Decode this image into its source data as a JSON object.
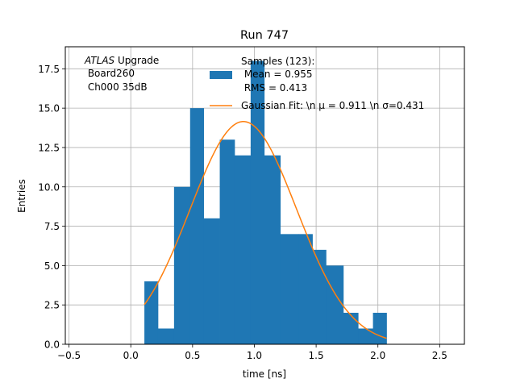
{
  "chart_data": {
    "type": "bar",
    "title": "Run 747",
    "xlabel": "time [ns]",
    "ylabel": "Entries",
    "xlim": [
      -0.53,
      2.7
    ],
    "ylim": [
      0,
      18.9
    ],
    "grid": true,
    "xticks": [
      -0.5,
      0.0,
      0.5,
      1.0,
      1.5,
      2.0,
      2.5
    ],
    "xtick_labels": [
      "−0.5",
      "0.0",
      "0.5",
      "1.0",
      "1.5",
      "2.0",
      "2.5"
    ],
    "yticks": [
      0.0,
      2.5,
      5.0,
      7.5,
      10.0,
      12.5,
      15.0,
      17.5
    ],
    "ytick_labels": [
      "0.0",
      "2.5",
      "5.0",
      "7.5",
      "10.0",
      "12.5",
      "15.0",
      "17.5"
    ],
    "histogram": {
      "name": "Samples (123)",
      "color": "#1f77b4",
      "bin_edges": [
        0.11,
        0.22,
        0.35,
        0.48,
        0.59,
        0.72,
        0.84,
        0.97,
        1.08,
        1.21,
        1.36,
        1.47,
        1.58,
        1.72,
        1.84,
        1.96,
        2.07
      ],
      "counts": [
        4,
        1,
        10,
        15,
        8,
        13,
        12,
        18,
        12,
        7,
        7,
        6,
        5,
        2,
        1,
        2
      ]
    },
    "fit": {
      "name": "Gaussian Fit",
      "color": "#ff7f0e",
      "amplitude": 14.15,
      "mu": 0.911,
      "sigma": 0.431,
      "x_range": [
        0.11,
        2.07
      ]
    },
    "annotation": {
      "italic_part": "ATLAS",
      "line1_rest": " Upgrade",
      "line2": " Board260",
      "line3": " Ch000 35dB"
    },
    "legend": {
      "position": "top-center",
      "hist_line1": "Samples (123):",
      "hist_line2": " Mean = 0.955",
      "hist_line3": " RMS = 0.413",
      "fit_label": "Gaussian Fit: \\n μ = 0.911 \\n σ=0.431"
    }
  }
}
